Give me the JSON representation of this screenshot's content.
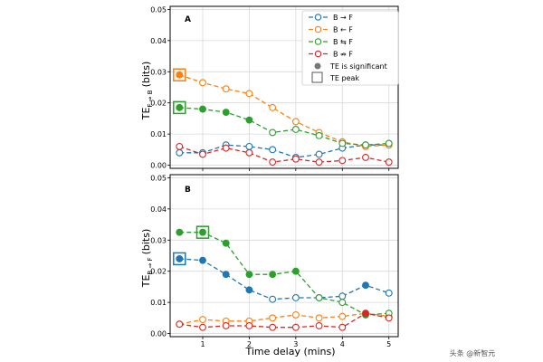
{
  "chart_data": [
    {
      "type": "line",
      "panel_label": "A",
      "ylabel_main": "TE",
      "ylabel_sub": "F ⇒ B",
      "ylabel_unit": "(bits)",
      "xlabel": "",
      "x": [
        0.5,
        1,
        1.5,
        2,
        2.5,
        3,
        3.5,
        4,
        4.5,
        5
      ],
      "xlim": [
        0.3,
        5.2
      ],
      "ylim": [
        -0.001,
        0.051
      ],
      "xticks": [
        "1",
        "2",
        "3",
        "4",
        "5"
      ],
      "yticks": [
        "0.00",
        "0.01",
        "0.02",
        "0.03",
        "0.04",
        "0.05"
      ],
      "grid": true,
      "legend_position": "top-right",
      "series": [
        {
          "name": "B → F",
          "color": "#1f77b4",
          "values": [
            0.004,
            0.004,
            0.0065,
            0.006,
            0.005,
            0.0025,
            0.0035,
            0.0055,
            0.0065,
            0.0065
          ],
          "significant": [
            false,
            false,
            false,
            false,
            false,
            false,
            false,
            false,
            false,
            false
          ]
        },
        {
          "name": "B ← F",
          "color": "#ff7f0e",
          "values": [
            0.029,
            0.0265,
            0.0245,
            0.023,
            0.0185,
            0.014,
            0.0105,
            0.0075,
            0.006,
            0.0065
          ],
          "significant": [
            true,
            false,
            false,
            false,
            false,
            false,
            false,
            false,
            false,
            false
          ]
        },
        {
          "name": "B ⇆ F",
          "color": "#2ca02c",
          "values": [
            0.0185,
            0.018,
            0.017,
            0.0145,
            0.0105,
            0.0115,
            0.0095,
            0.007,
            0.0065,
            0.007
          ],
          "significant": [
            true,
            true,
            true,
            true,
            false,
            false,
            false,
            false,
            false,
            false
          ]
        },
        {
          "name": "B ⇏ F",
          "color": "#d62728",
          "values": [
            0.006,
            0.0035,
            0.0055,
            0.004,
            0.001,
            0.002,
            0.001,
            0.0015,
            0.0025,
            0.001
          ],
          "significant": [
            false,
            false,
            false,
            false,
            false,
            false,
            false,
            false,
            false,
            false
          ]
        }
      ],
      "peaks": [
        {
          "series": 1,
          "index": 0
        },
        {
          "series": 2,
          "index": 0
        }
      ],
      "legend": {
        "significant_label": "TE is significant",
        "peak_label": "TE peak"
      }
    },
    {
      "type": "line",
      "panel_label": "B",
      "ylabel_main": "TE",
      "ylabel_sub": "B ⇒ F",
      "ylabel_unit": "(bits)",
      "xlabel": "Time delay (mins)",
      "x": [
        0.5,
        1,
        1.5,
        2,
        2.5,
        3,
        3.5,
        4,
        4.5,
        5
      ],
      "xlim": [
        0.3,
        5.2
      ],
      "ylim": [
        -0.001,
        0.051
      ],
      "xticks": [
        "1",
        "2",
        "3",
        "4",
        "5"
      ],
      "yticks": [
        "0.00",
        "0.01",
        "0.02",
        "0.03",
        "0.04",
        "0.05"
      ],
      "grid": true,
      "series": [
        {
          "name": "B → F",
          "color": "#1f77b4",
          "values": [
            0.024,
            0.0235,
            0.019,
            0.014,
            0.011,
            0.0115,
            0.0115,
            0.012,
            0.0155,
            0.013
          ],
          "significant": [
            true,
            true,
            true,
            true,
            false,
            false,
            false,
            false,
            true,
            false
          ]
        },
        {
          "name": "B ← F",
          "color": "#ff7f0e",
          "values": [
            0.003,
            0.0045,
            0.004,
            0.004,
            0.005,
            0.006,
            0.005,
            0.0055,
            0.0065,
            0.0055
          ],
          "significant": [
            false,
            false,
            false,
            false,
            false,
            false,
            false,
            false,
            false,
            false
          ]
        },
        {
          "name": "B ⇆ F",
          "color": "#2ca02c",
          "values": [
            0.0325,
            0.0325,
            0.029,
            0.019,
            0.019,
            0.02,
            0.0115,
            0.01,
            0.006,
            0.0065
          ],
          "significant": [
            true,
            true,
            true,
            true,
            true,
            true,
            false,
            false,
            true,
            false
          ]
        },
        {
          "name": "B ⇏ F",
          "color": "#d62728",
          "values": [
            0.003,
            0.002,
            0.0025,
            0.0025,
            0.002,
            0.002,
            0.0025,
            0.002,
            0.0065,
            0.005
          ],
          "significant": [
            false,
            false,
            false,
            false,
            false,
            false,
            false,
            false,
            true,
            false
          ]
        }
      ],
      "peaks": [
        {
          "series": 0,
          "index": 0
        },
        {
          "series": 2,
          "index": 1
        }
      ]
    }
  ],
  "watermark": "头条 @新智元"
}
